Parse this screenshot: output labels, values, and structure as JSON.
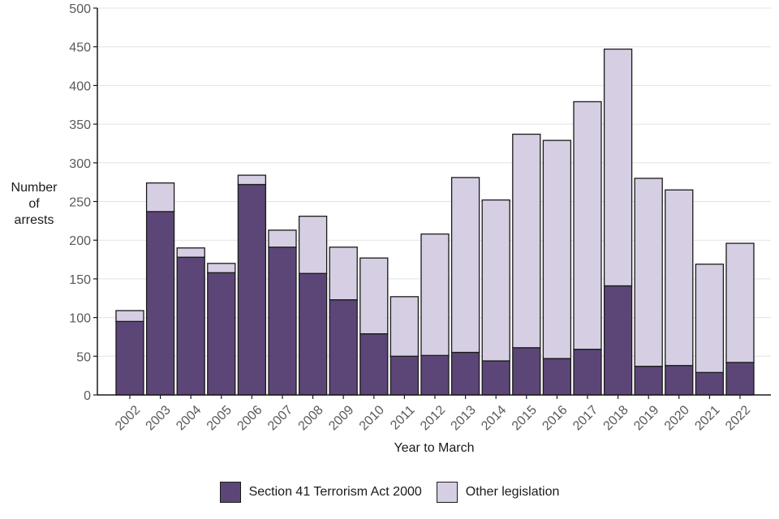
{
  "chart_data": {
    "type": "bar",
    "stacked": true,
    "title": "",
    "xlabel": "Year to March",
    "ylabel": "Number of arrests",
    "ylabel_lines": [
      "Number",
      "of",
      "arrests"
    ],
    "ylim": [
      0,
      500
    ],
    "yticks": [
      0,
      50,
      100,
      150,
      200,
      250,
      300,
      350,
      400,
      450,
      500
    ],
    "grid": true,
    "legend_position": "bottom",
    "categories": [
      "2002",
      "2003",
      "2004",
      "2005",
      "2006",
      "2007",
      "2008",
      "2009",
      "2010",
      "2011",
      "2012",
      "2013",
      "2014",
      "2015",
      "2016",
      "2017",
      "2018",
      "2019",
      "2020",
      "2021",
      "2022"
    ],
    "series": [
      {
        "name": "Section 41 Terrorism Act 2000",
        "color": "#5c4677",
        "values": [
          95,
          237,
          178,
          158,
          272,
          191,
          157,
          123,
          79,
          50,
          51,
          55,
          44,
          61,
          47,
          59,
          141,
          37,
          38,
          29,
          42
        ]
      },
      {
        "name": "Other legislation",
        "color": "#d6cfe3",
        "values": [
          14,
          37,
          12,
          12,
          12,
          22,
          74,
          68,
          98,
          77,
          157,
          226,
          208,
          276,
          282,
          320,
          306,
          243,
          227,
          140,
          154
        ]
      }
    ]
  }
}
